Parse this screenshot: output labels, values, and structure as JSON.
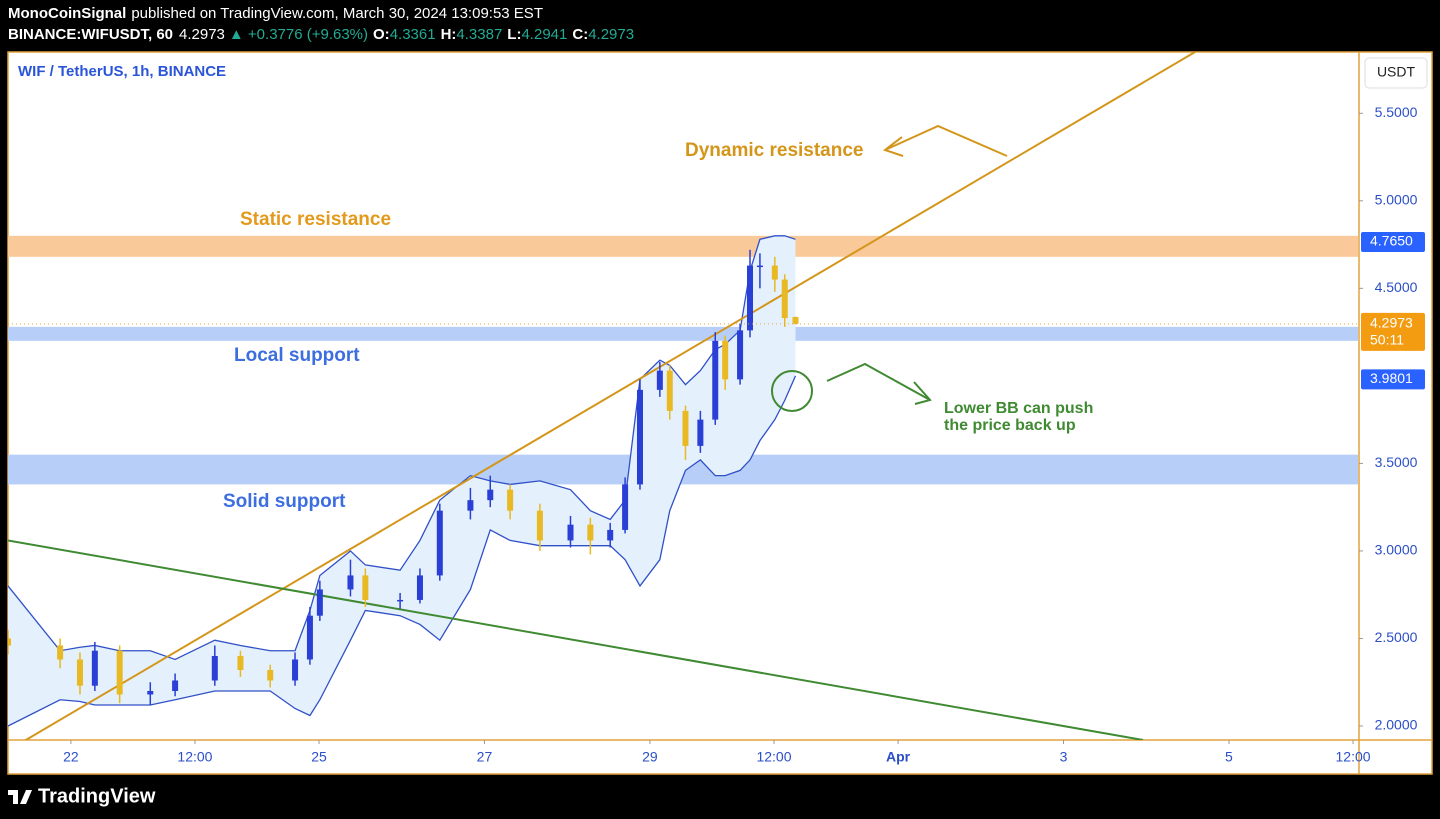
{
  "header": {
    "author": "MonoCoinSignal",
    "published": "published on TradingView.com, March 30, 2024 13:09:53 EST",
    "symbol": "BINANCE:WIFUSDT, 60",
    "change": "▲ +0.3776 (+9.63%)",
    "ohlc_labels": [
      "O:",
      "H:",
      "L:",
      "C:"
    ]
  },
  "chart_data": {
    "type": "candlestick",
    "title": "WIF / TetherUS, 1h, BINANCE",
    "currency": "USDT",
    "up_color": "#2a3fd6",
    "down_color": "#e8b923",
    "x": [
      21.24,
      21.87,
      22.11,
      22.29,
      22.59,
      22.96,
      23.26,
      23.74,
      24.05,
      24.41,
      24.71,
      24.89,
      25.01,
      25.38,
      25.56,
      25.98,
      26.22,
      26.46,
      26.83,
      27.07,
      27.31,
      27.67,
      28.04,
      28.28,
      28.52,
      28.7,
      28.88,
      29.12,
      29.24,
      29.43,
      29.61,
      29.79,
      29.91,
      30.09,
      30.21,
      30.33,
      30.51,
      30.63,
      30.76
    ],
    "open": [
      2.5,
      2.46,
      2.38,
      2.23,
      2.43,
      2.18,
      2.2,
      2.26,
      2.4,
      2.32,
      2.26,
      2.38,
      2.63,
      2.78,
      2.86,
      2.72,
      2.72,
      2.86,
      3.23,
      3.29,
      3.35,
      3.23,
      3.06,
      3.15,
      3.06,
      3.12,
      3.38,
      3.92,
      4.03,
      3.8,
      3.6,
      3.75,
      4.2,
      3.98,
      4.26,
      4.63,
      4.63,
      4.55,
      4.3361
    ],
    "high": [
      2.55,
      2.5,
      2.42,
      2.48,
      2.46,
      2.25,
      2.3,
      2.46,
      2.43,
      2.35,
      2.42,
      2.68,
      2.83,
      2.95,
      2.9,
      2.76,
      2.9,
      3.27,
      3.36,
      3.43,
      3.38,
      3.27,
      3.2,
      3.19,
      3.16,
      3.42,
      3.98,
      4.08,
      4.06,
      3.83,
      3.8,
      4.25,
      4.23,
      4.3,
      4.72,
      4.7,
      4.68,
      4.58,
      4.3387
    ],
    "low": [
      2.41,
      2.33,
      2.18,
      2.2,
      2.13,
      2.12,
      2.17,
      2.23,
      2.28,
      2.22,
      2.23,
      2.35,
      2.6,
      2.74,
      2.68,
      2.67,
      2.7,
      2.83,
      3.18,
      3.25,
      3.18,
      3.0,
      3.02,
      2.98,
      3.02,
      3.1,
      3.35,
      3.88,
      3.75,
      3.52,
      3.56,
      3.72,
      3.92,
      3.95,
      4.22,
      4.5,
      4.48,
      4.28,
      4.2941
    ],
    "close": [
      2.46,
      2.38,
      2.23,
      2.43,
      2.18,
      2.2,
      2.26,
      2.4,
      2.32,
      2.26,
      2.38,
      2.63,
      2.78,
      2.86,
      2.72,
      2.72,
      2.86,
      3.23,
      3.29,
      3.35,
      3.23,
      3.06,
      3.15,
      3.06,
      3.12,
      3.38,
      3.92,
      4.03,
      3.8,
      3.6,
      3.75,
      4.2,
      3.98,
      4.26,
      4.63,
      4.63,
      4.55,
      4.33,
      4.2973
    ],
    "countdown": "50:11",
    "bands": {
      "color": "#3050c8",
      "fill": "#e4f0fb",
      "upper": [
        2.8,
        2.43,
        2.45,
        2.46,
        2.43,
        2.43,
        2.38,
        2.49,
        2.46,
        2.43,
        2.43,
        2.66,
        2.86,
        3.0,
        2.92,
        2.89,
        3.06,
        3.29,
        3.43,
        3.4,
        3.38,
        3.4,
        3.35,
        3.23,
        3.18,
        3.29,
        3.98,
        4.09,
        4.06,
        3.95,
        4.03,
        4.15,
        4.18,
        4.26,
        4.6,
        4.78,
        4.8,
        4.8,
        4.78
      ],
      "lower": [
        2.0,
        2.15,
        2.14,
        2.12,
        2.12,
        2.12,
        2.15,
        2.2,
        2.2,
        2.2,
        2.1,
        2.06,
        2.15,
        2.49,
        2.66,
        2.63,
        2.58,
        2.49,
        2.78,
        3.12,
        3.06,
        3.03,
        3.03,
        3.03,
        3.03,
        2.95,
        2.8,
        2.95,
        3.23,
        3.46,
        3.52,
        3.43,
        3.43,
        3.46,
        3.52,
        3.63,
        3.75,
        3.86,
        4.0
      ]
    },
    "zones": [
      {
        "label": "Static resistance",
        "range": [
          4.68,
          4.8
        ],
        "color": "#f9c99a",
        "label_color": "#e39a1c"
      },
      {
        "label": "Local support",
        "range": [
          4.2,
          4.28
        ],
        "color": "#b7cff8",
        "label_color": "#3d6ee0"
      },
      {
        "label": "Solid support",
        "range": [
          3.38,
          3.55
        ],
        "color": "#b7cff8",
        "label_color": "#3d6ee0"
      }
    ],
    "trendlines": [
      {
        "label": "Dynamic resistance",
        "from": [
          21.24,
          1.86
        ],
        "to": [
          35.59,
          5.85
        ],
        "color": "#d4961a"
      },
      {
        "from": [
          21.24,
          3.06
        ],
        "to": [
          34.96,
          1.92
        ],
        "color": "#3f8a32"
      }
    ],
    "note": {
      "lines": [
        "Lower BB can push",
        "the price back up"
      ],
      "color": "#3f8a32"
    },
    "price_labels": [
      {
        "value": 4.765,
        "label": "4.7650"
      },
      {
        "value": 3.9801,
        "label": "3.9801"
      }
    ],
    "xlim": [
      21.24,
      37.56
    ],
    "ylim": [
      1.92,
      5.85
    ],
    "xticks": [
      22,
      {
        "value": 23.5,
        "label": "12:00"
      },
      25,
      27,
      29,
      {
        "value": 30.5,
        "label": "12:00"
      },
      {
        "value": 32,
        "label": "Apr"
      },
      {
        "value": 34,
        "label": "3"
      },
      {
        "value": 36,
        "label": "5"
      },
      {
        "value": 37.5,
        "label": "12:00"
      }
    ],
    "yticks": [
      {
        "value": 2,
        "label": "2.0000"
      },
      {
        "value": 2.5,
        "label": "2.5000"
      },
      {
        "value": 3,
        "label": "3.0000"
      },
      {
        "value": 3.5,
        "label": "3.5000"
      },
      {
        "value": 4.5,
        "label": "4.5000"
      },
      {
        "value": 5,
        "label": "5.0000"
      },
      {
        "value": 5.5,
        "label": "5.5000"
      }
    ]
  },
  "footer": {
    "brand": "TradingView"
  }
}
